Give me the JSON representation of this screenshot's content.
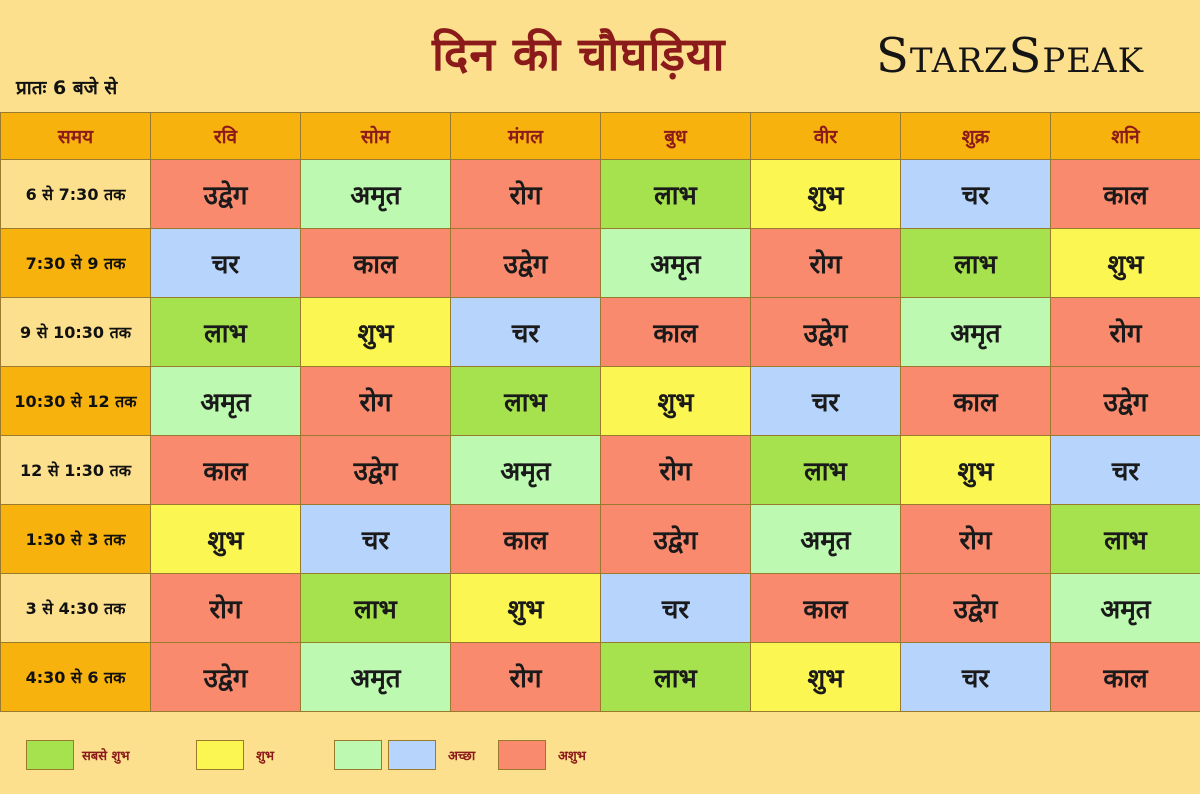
{
  "header": {
    "subtitle": "प्रातः 6 बजे से",
    "title": "दिन की चौघड़िया",
    "brand": "StarzSpeak"
  },
  "table": {
    "columns": [
      "समय",
      "रवि",
      "सोम",
      "मंगल",
      "बुध",
      "वीर",
      "शुक्र",
      "शनि"
    ],
    "rows": [
      {
        "time": "6 से 7:30 तक",
        "cells": [
          "उद्वेग",
          "अमृत",
          "रोग",
          "लाभ",
          "शुभ",
          "चर",
          "काल"
        ]
      },
      {
        "time": "7:30 से 9 तक",
        "cells": [
          "चर",
          "काल",
          "उद्वेग",
          "अमृत",
          "रोग",
          "लाभ",
          "शुभ"
        ]
      },
      {
        "time": "9 से 10:30 तक",
        "cells": [
          "लाभ",
          "शुभ",
          "चर",
          "काल",
          "उद्वेग",
          "अमृत",
          "रोग"
        ]
      },
      {
        "time": "10:30 से 12 तक",
        "cells": [
          "अमृत",
          "रोग",
          "लाभ",
          "शुभ",
          "चर",
          "काल",
          "उद्वेग"
        ]
      },
      {
        "time": "12 से 1:30 तक",
        "cells": [
          "काल",
          "उद्वेग",
          "अमृत",
          "रोग",
          "लाभ",
          "शुभ",
          "चर"
        ]
      },
      {
        "time": "1:30 से 3 तक",
        "cells": [
          "शुभ",
          "चर",
          "काल",
          "उद्वेग",
          "अमृत",
          "रोग",
          "लाभ"
        ]
      },
      {
        "time": "3 से 4:30 तक",
        "cells": [
          "रोग",
          "लाभ",
          "शुभ",
          "चर",
          "काल",
          "उद्वेग",
          "अमृत"
        ]
      },
      {
        "time": "4:30 से 6 तक",
        "cells": [
          "उद्वेग",
          "अमृत",
          "रोग",
          "लाभ",
          "शुभ",
          "चर",
          "काल"
        ]
      }
    ]
  },
  "colors": {
    "लाभ": "#a6e24e",
    "शुभ": "#fbf651",
    "अमृत": "#bdf9b0",
    "चर": "#b7d4fc",
    "रोग": "#fa8a6e",
    "काल": "#fa8a6e",
    "उद्वेग": "#fa8a6e"
  },
  "legend": {
    "most_auspicious": "सबसे शुभ",
    "auspicious": "शुभ",
    "good": "अच्छा",
    "inauspicious": "अशुभ"
  }
}
